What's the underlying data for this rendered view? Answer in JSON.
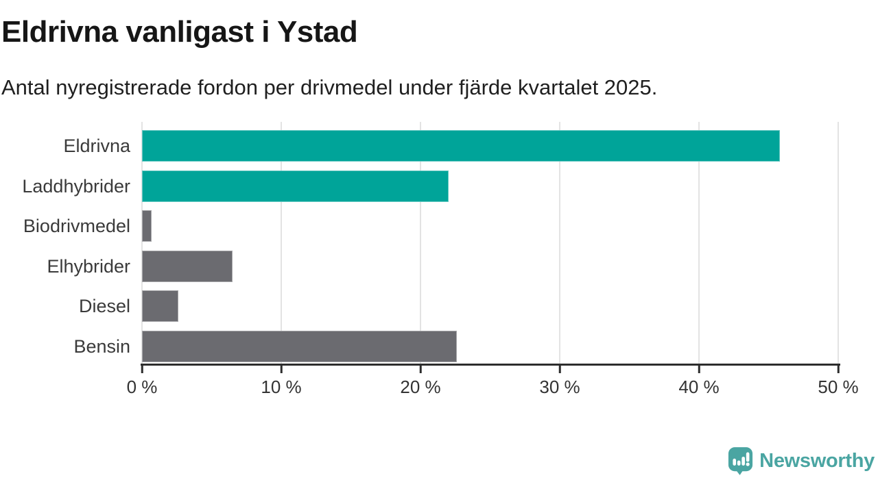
{
  "header": {
    "title": "Eldrivna vanligast i Ystad",
    "subtitle": "Antal nyregistrerade fordon per drivmedel under fjärde kvartalet 2025."
  },
  "chart_data": {
    "type": "bar",
    "orientation": "horizontal",
    "title": "Eldrivna vanligast i Ystad",
    "subtitle": "Antal nyregistrerade fordon per drivmedel under fjärde kvartalet 2025.",
    "categories": [
      "Eldrivna",
      "Laddhybrider",
      "Biodrivmedel",
      "Elhybrider",
      "Diesel",
      "Bensin"
    ],
    "values": [
      45.8,
      22.0,
      0.7,
      6.5,
      2.6,
      22.6
    ],
    "unit": "%",
    "bar_colors": [
      "#00a499",
      "#00a499",
      "#6b6b70",
      "#6b6b70",
      "#6b6b70",
      "#6b6b70"
    ],
    "xlim": [
      0,
      50
    ],
    "xticks": [
      0,
      10,
      20,
      30,
      40,
      50
    ],
    "xtick_labels": [
      "0 %",
      "10 %",
      "20 %",
      "30 %",
      "40 %",
      "50 %"
    ],
    "grid": "vertical-gridlines-on",
    "legend": "none"
  },
  "footer": {
    "brand": "Newsworthy"
  },
  "colors": {
    "accent_teal": "#00a499",
    "neutral_gray": "#6b6b70",
    "logo_teal": "#4aa5a2",
    "gridline": "#e3e3e3",
    "axis": "#2d2d2d"
  }
}
